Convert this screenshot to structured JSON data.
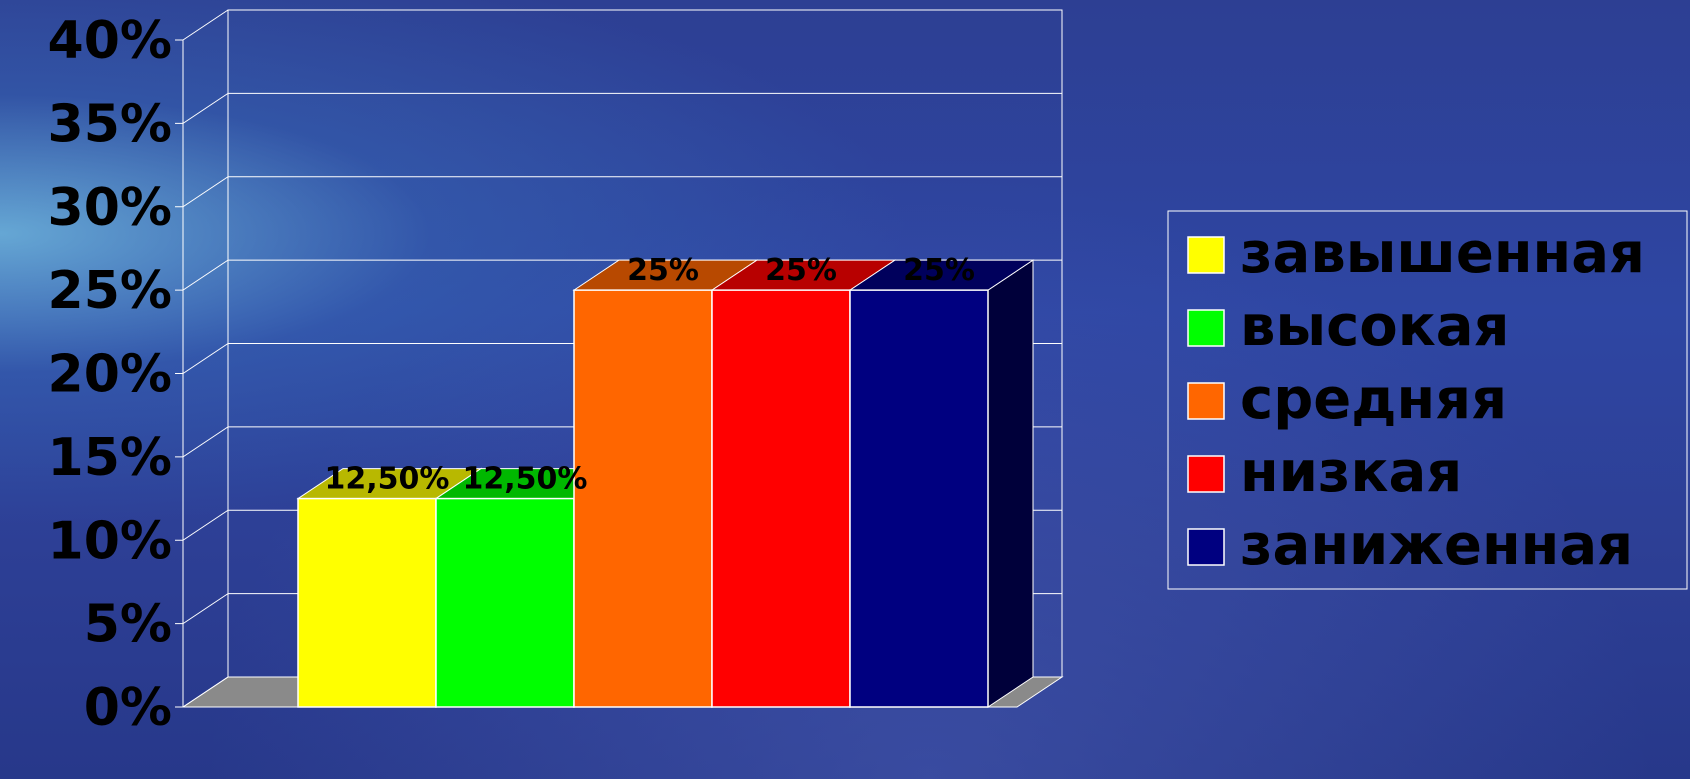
{
  "chart_data": {
    "type": "bar",
    "title": "",
    "xlabel": "",
    "ylabel": "",
    "ylim": [
      0,
      40
    ],
    "y_ticks": [
      "0%",
      "5%",
      "10%",
      "15%",
      "20%",
      "25%",
      "30%",
      "35%",
      "40%"
    ],
    "y_tick_values": [
      0,
      5,
      10,
      15,
      20,
      25,
      30,
      35,
      40
    ],
    "grid": true,
    "legend_position": "right",
    "style": "3d-clustered",
    "series": [
      {
        "name": "завышенная",
        "value": 12.5,
        "label": "12,50%",
        "color": "#FFFF00"
      },
      {
        "name": "высокая",
        "value": 12.5,
        "label": "12,50%",
        "color": "#00FF00"
      },
      {
        "name": "средняя",
        "value": 25,
        "label": "25%",
        "color": "#FF6600"
      },
      {
        "name": "низкая",
        "value": 25,
        "label": "25%",
        "color": "#FF0000"
      },
      {
        "name": "заниженная",
        "value": 25,
        "label": "25%",
        "color": "#000080"
      }
    ]
  }
}
